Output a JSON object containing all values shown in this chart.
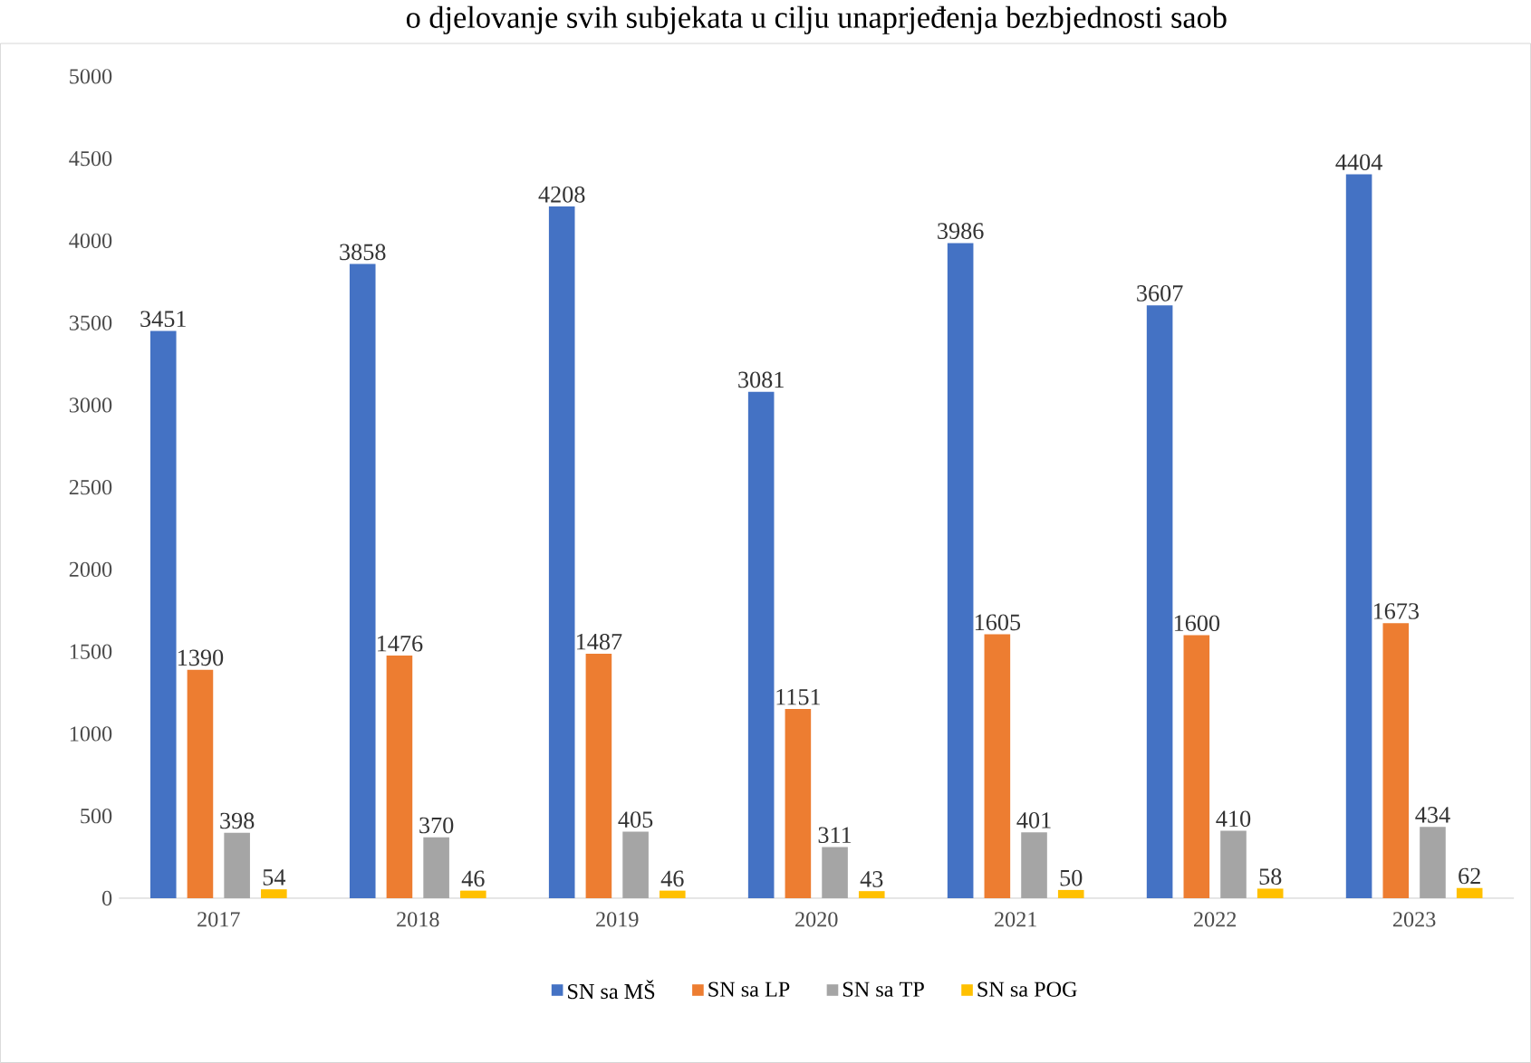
{
  "chart_data": {
    "type": "bar",
    "title": "o djelovanje svih subjekata u cilju unaprjeđenja bezbjednosti saob",
    "categories": [
      "2017",
      "2018",
      "2019",
      "2020",
      "2021",
      "2022",
      "2023"
    ],
    "series": [
      {
        "name": "SN sa MŠ",
        "color": "#4472c4",
        "values": [
          3451,
          3858,
          4208,
          3081,
          3986,
          3607,
          4404
        ]
      },
      {
        "name": "SN sa LP",
        "color": "#ed7d31",
        "values": [
          1390,
          1476,
          1487,
          1151,
          1605,
          1600,
          1673
        ]
      },
      {
        "name": "SN sa TP",
        "color": "#a5a5a5",
        "values": [
          398,
          370,
          405,
          311,
          401,
          410,
          434
        ]
      },
      {
        "name": "SN sa POG",
        "color": "#ffc000",
        "values": [
          54,
          46,
          46,
          43,
          50,
          58,
          62
        ]
      }
    ],
    "ylim": [
      0,
      5000
    ],
    "yticks": [
      0,
      500,
      1000,
      1500,
      2000,
      2500,
      3000,
      3500,
      4000,
      4500,
      5000
    ],
    "grid": false,
    "legend": "bottom",
    "data_labels": true
  }
}
